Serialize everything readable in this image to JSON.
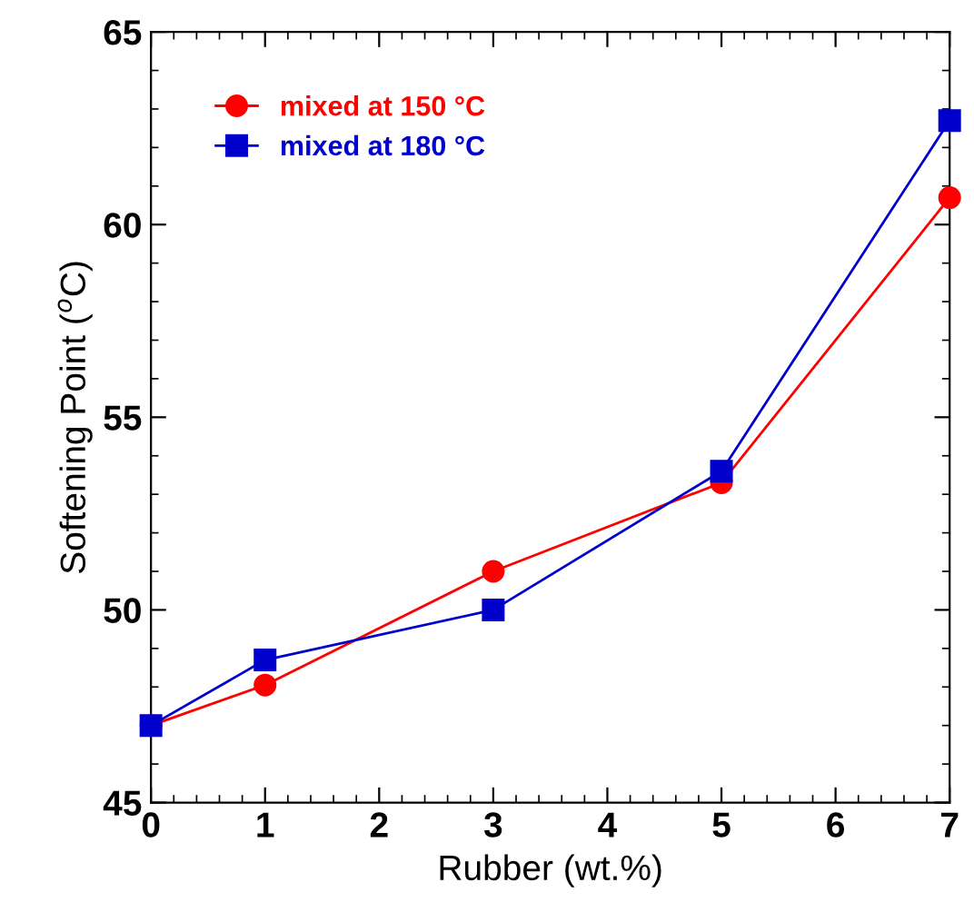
{
  "chart_data": {
    "type": "line",
    "xlabel": "Rubber (wt.%)",
    "ylabel": "Softening Point ($^{o}$C)",
    "x": [
      0,
      1,
      3,
      5,
      7
    ],
    "series": [
      {
        "name": "mixed at 150 °C",
        "color": "#ff0000",
        "marker": "circle",
        "values": [
          47.0,
          48.05,
          51.0,
          53.3,
          60.7
        ]
      },
      {
        "name": "mixed at 180 °C",
        "color": "#0000cc",
        "marker": "square",
        "values": [
          47.0,
          48.7,
          50.0,
          53.6,
          62.7
        ]
      }
    ],
    "xlim": [
      0,
      7
    ],
    "xticks": [
      0,
      1,
      2,
      3,
      4,
      5,
      6,
      7
    ],
    "ylim": [
      45,
      65
    ],
    "yticks": [
      45,
      50,
      55,
      60,
      65
    ],
    "grid": false,
    "legend": "top left",
    "line_style": "solid"
  }
}
